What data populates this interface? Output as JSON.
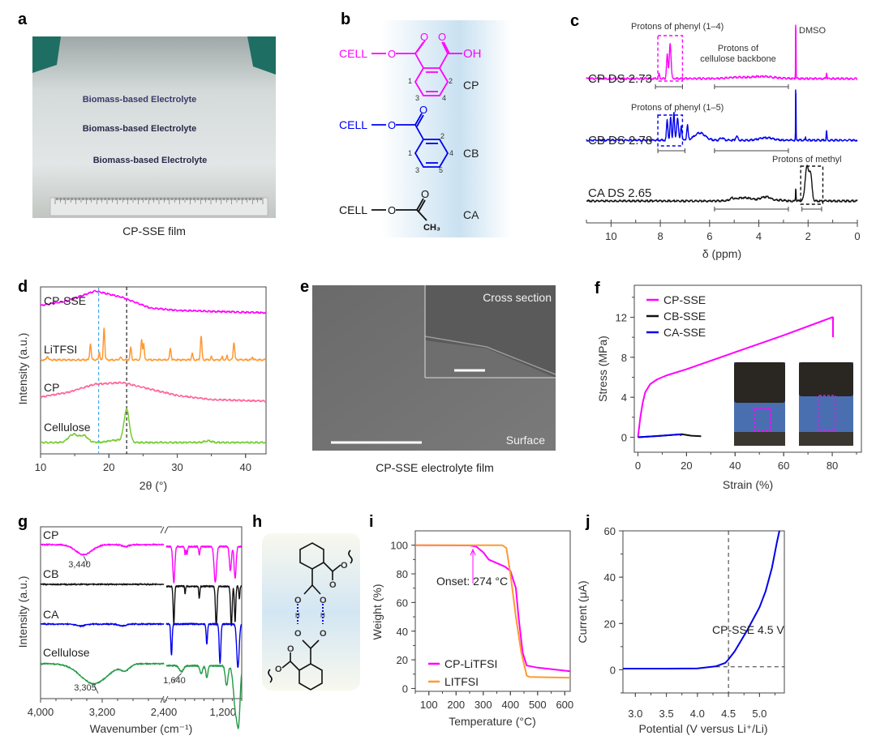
{
  "panels": {
    "a": {
      "label": "a",
      "caption": "CP-SSE film",
      "film_text": [
        "Biomass-based Electrolyte",
        "Biomass-based Electrolyte",
        "Biomass-based Electrolyte"
      ]
    },
    "b": {
      "label": "b",
      "cp": {
        "group": "CELL",
        "o": "O",
        "oh": "OH",
        "name": "CP",
        "positions": [
          "1",
          "2",
          "3",
          "4"
        ]
      },
      "cb": {
        "group": "CELL",
        "o": "O",
        "name": "CB",
        "positions": [
          "1",
          "2",
          "3",
          "4",
          "5"
        ]
      },
      "ca": {
        "group": "CELL",
        "o": "O",
        "methyl": "CH₃",
        "name": "CA"
      }
    },
    "e": {
      "label": "e",
      "caption": "CP-SSE electrolyte film",
      "inset_label": "Cross section",
      "main_label": "Surface"
    },
    "h": {
      "label": "h",
      "atoms": {
        "o": "O",
        "h": "H"
      }
    }
  },
  "colors": {
    "magenta": "#ff00ff",
    "blue": "#0000ee",
    "black": "#111111",
    "orange": "#ff9933",
    "pink": "#ff6699",
    "green": "#77cc33",
    "dkgreen": "#229944",
    "lightblue": "#4aa8ee"
  },
  "chart_data": [
    {
      "id": "c",
      "label": "c",
      "type": "line",
      "xlabel": "δ (ppm)",
      "xlim": [
        11,
        0
      ],
      "xticks": [
        10,
        8,
        6,
        4,
        2,
        0
      ],
      "series": [
        {
          "name": "CP DS 2.73",
          "color": "#ff00ff",
          "offset": 15.1,
          "peaks": [
            [
              7.6,
              4.4,
              0.05
            ],
            [
              7.72,
              3.0,
              0.04
            ],
            [
              8.05,
              0.6,
              0.03
            ],
            [
              3.8,
              0.25,
              0.6
            ],
            [
              4.8,
              0.15,
              0.6
            ],
            [
              2.5,
              8.2,
              0.012
            ],
            [
              1.25,
              0.8,
              0.02
            ]
          ]
        },
        {
          "name": "CB DS 2.78",
          "color": "#0000ee",
          "offset": 7.5,
          "peaks": [
            [
              7.72,
              2.5,
              0.04
            ],
            [
              7.58,
              2.8,
              0.04
            ],
            [
              7.45,
              3.4,
              0.04
            ],
            [
              7.3,
              2.8,
              0.05
            ],
            [
              7.15,
              1.8,
              0.04
            ],
            [
              6.9,
              1.8,
              0.04
            ],
            [
              6.4,
              0.9,
              0.3
            ],
            [
              5.5,
              0.3,
              0.1
            ],
            [
              4.9,
              0.5,
              0.06
            ],
            [
              3.7,
              0.3,
              0.4
            ],
            [
              2.5,
              7.6,
              0.012
            ],
            [
              2.1,
              0.3,
              0.02
            ],
            [
              1.25,
              1.2,
              0.02
            ]
          ]
        },
        {
          "name": "CA DS 2.65",
          "color": "#111111",
          "offset": 0,
          "peaks": [
            [
              5.1,
              0.25,
              0.1
            ],
            [
              4.6,
              0.4,
              0.5
            ],
            [
              3.7,
              0.5,
              0.3
            ],
            [
              3.1,
              0.1,
              0.2
            ],
            [
              2.5,
              1.8,
              0.015
            ],
            [
              2.05,
              4.2,
              0.1
            ],
            [
              1.9,
              3.2,
              0.08
            ]
          ]
        }
      ],
      "annotations": {
        "phenyl_cp": "Protons of phenyl (1–4)",
        "backbone": "Protons of cellulose backbone",
        "dmso": "DMSO",
        "phenyl_cb": "Protons of phenyl (1–5)",
        "methyl": "Protons of methyl"
      },
      "brackets": [
        [
          0,
          8.2,
          7.1
        ],
        [
          0,
          5.8,
          2.8
        ],
        [
          1,
          8.1,
          7.0
        ],
        [
          1,
          5.8,
          2.8
        ],
        [
          2,
          5.8,
          2.8
        ],
        [
          2,
          2.25,
          1.45
        ]
      ],
      "boxes": [
        [
          0,
          8.1,
          7.1,
          "#ff00ff"
        ],
        [
          1,
          8.1,
          7.1,
          "#0000ee"
        ],
        [
          2,
          2.3,
          1.4,
          "#111111"
        ]
      ]
    },
    {
      "id": "d",
      "label": "d",
      "type": "line",
      "xlabel": "2θ (°)",
      "ylabel": "Intensity (a.u.)",
      "xlim": [
        10,
        43
      ],
      "xticks": [
        10,
        20,
        30,
        40
      ],
      "vlines": [
        {
          "x": 18.5,
          "color": "#4aa8ee"
        },
        {
          "x": 22.6,
          "color": "#222222"
        }
      ],
      "series": [
        {
          "name": "CP-SSE",
          "color": "#ff00ff",
          "offset": 16.3,
          "base": [
            [
              10,
              0.6
            ],
            [
              14,
              1.2
            ],
            [
              18,
              2.4
            ],
            [
              22,
              1.6
            ],
            [
              26,
              0.3
            ],
            [
              30,
              0
            ],
            [
              43,
              -0.3
            ]
          ],
          "peaks": []
        },
        {
          "name": "LiTFSI",
          "color": "#ff9933",
          "offset": 10.2,
          "base": [
            [
              10,
              0
            ],
            [
              43,
              0
            ]
          ],
          "peaks": [
            [
              11,
              0.5,
              0.15
            ],
            [
              17.3,
              2.0,
              0.15
            ],
            [
              18.6,
              1.0,
              0.12
            ],
            [
              19.3,
              4.0,
              0.15
            ],
            [
              21.7,
              0.3,
              0.2
            ],
            [
              23.2,
              1.5,
              0.15
            ],
            [
              24.8,
              2.5,
              0.15
            ],
            [
              25.1,
              2.0,
              0.12
            ],
            [
              29,
              1.5,
              0.15
            ],
            [
              32.2,
              0.8,
              0.15
            ],
            [
              33.5,
              3.0,
              0.15
            ],
            [
              35,
              0.4,
              0.12
            ],
            [
              36.6,
              0.4,
              0.12
            ],
            [
              37.3,
              0.5,
              0.12
            ],
            [
              38.3,
              2.2,
              0.15
            ],
            [
              41,
              0.4,
              0.12
            ]
          ]
        },
        {
          "name": "CP",
          "color": "#ff6699",
          "offset": 5.6,
          "base": [
            [
              10,
              0
            ],
            [
              14,
              0.6
            ],
            [
              18,
              1.6
            ],
            [
              22,
              1.8
            ],
            [
              26,
              1.0
            ],
            [
              30,
              0.2
            ],
            [
              35,
              -0.3
            ],
            [
              43,
              -0.5
            ]
          ],
          "peaks": []
        },
        {
          "name": "Cellulose",
          "color": "#77cc33",
          "offset": 0,
          "base": [
            [
              10,
              0
            ],
            [
              43,
              0
            ]
          ],
          "peaks": [
            [
              14.8,
              1.0,
              1.0
            ],
            [
              16.4,
              0.8,
              0.8
            ],
            [
              21,
              0.3,
              1.5
            ],
            [
              22.6,
              4.0,
              0.55
            ],
            [
              34.5,
              0.2,
              0.8
            ]
          ]
        }
      ]
    },
    {
      "id": "f",
      "label": "f",
      "type": "line",
      "xlabel": "Strain (%)",
      "ylabel": "Stress (MPa)",
      "xlim": [
        -1.5,
        92
      ],
      "ylim": [
        -1.5,
        15.2
      ],
      "xticks": [
        0,
        20,
        40,
        60,
        80
      ],
      "yticks": [
        0,
        4,
        8,
        12
      ],
      "legend": "top-left",
      "series": [
        {
          "name": "CP-SSE",
          "color": "#ff00ff",
          "points": [
            [
              0,
              0
            ],
            [
              1,
              2
            ],
            [
              2,
              3.5
            ],
            [
              3,
              4.5
            ],
            [
              5,
              5.3
            ],
            [
              8,
              5.8
            ],
            [
              12,
              6.2
            ],
            [
              20,
              6.8
            ],
            [
              40,
              8.5
            ],
            [
              60,
              10.2
            ],
            [
              80,
              12
            ],
            [
              80.3,
              12
            ],
            [
              80.3,
              10
            ]
          ]
        },
        {
          "name": "CB-SSE",
          "color": "#111111",
          "points": [
            [
              0,
              0
            ],
            [
              10,
              0.15
            ],
            [
              18,
              0.3
            ],
            [
              22,
              0.15
            ],
            [
              26,
              0.1
            ]
          ]
        },
        {
          "name": "CA-SSE",
          "color": "#0000ee",
          "points": [
            [
              0,
              0
            ],
            [
              8,
              0.12
            ],
            [
              17,
              0.28
            ],
            [
              18,
              0.2
            ]
          ]
        }
      ]
    },
    {
      "id": "g",
      "label": "g",
      "type": "line",
      "xlabel": "Wavenumber (cm⁻¹)",
      "ylabel": "Intensity (a.u.)",
      "xlim_left": [
        4000,
        2400
      ],
      "xlim_right": [
        1800,
        1000
      ],
      "xticks": [
        "4,000",
        "3,200",
        "2,400",
        "1,200"
      ],
      "annotations": [
        {
          "series": 0,
          "text": "3,440"
        },
        {
          "series": 3,
          "text": "3,305"
        },
        {
          "series": 3,
          "text": "1,640"
        }
      ],
      "series": [
        {
          "name": "CP",
          "color": "#ff00ff",
          "offset": 3.0,
          "dips": [
            [
              3440,
              0.25,
              150
            ],
            [
              2900,
              0.05,
              60
            ],
            [
              1720,
              0.9,
              15
            ],
            [
              1600,
              0.2,
              8
            ],
            [
              1580,
              0.2,
              8
            ],
            [
              1450,
              0.2,
              10
            ],
            [
              1280,
              0.9,
              18
            ],
            [
              1120,
              0.6,
              15
            ],
            [
              1070,
              0.8,
              15
            ]
          ]
        },
        {
          "name": "CB",
          "color": "#111111",
          "offset": 2.0,
          "dips": [
            [
              1720,
              0.95,
              10
            ],
            [
              1600,
              0.2,
              6
            ],
            [
              1450,
              0.3,
              8
            ],
            [
              1270,
              1.0,
              12
            ],
            [
              1110,
              1.0,
              12
            ],
            [
              1070,
              0.9,
              10
            ],
            [
              1025,
              0.3,
              8
            ]
          ]
        },
        {
          "name": "CA",
          "color": "#0000ee",
          "offset": 1.0,
          "dips": [
            [
              3480,
              0.05,
              80
            ],
            [
              2940,
              0.05,
              60
            ],
            [
              1745,
              0.8,
              10
            ],
            [
              1370,
              0.5,
              10
            ],
            [
              1230,
              1.0,
              12
            ],
            [
              1040,
              1.1,
              18
            ]
          ]
        },
        {
          "name": "Cellulose",
          "color": "#229944",
          "offset": 0,
          "dips": [
            [
              3305,
              0.5,
              250
            ],
            [
              2900,
              0.15,
              80
            ],
            [
              1640,
              0.15,
              30
            ],
            [
              1430,
              0.2,
              20
            ],
            [
              1370,
              0.3,
              15
            ],
            [
              1160,
              0.5,
              20
            ],
            [
              1060,
              1.2,
              35
            ],
            [
              1030,
              0.9,
              20
            ]
          ]
        }
      ]
    },
    {
      "id": "i",
      "label": "i",
      "type": "line",
      "xlabel": "Temperature (°C)",
      "ylabel": "Weight (%)",
      "xlim": [
        50,
        620
      ],
      "ylim": [
        -2,
        110
      ],
      "xticks": [
        100,
        200,
        300,
        400,
        500,
        600
      ],
      "yticks": [
        0,
        20,
        40,
        60,
        80,
        100
      ],
      "legend": "bottom-left",
      "annotation": {
        "text": "Onset: 274 °C",
        "x": 274
      },
      "series": [
        {
          "name": "CP-LiTFSI",
          "color": "#ff00ff",
          "points": [
            [
              50,
              100
            ],
            [
              250,
              99.8
            ],
            [
              274,
              99
            ],
            [
              300,
              95
            ],
            [
              320,
              90
            ],
            [
              380,
              85
            ],
            [
              400,
              82
            ],
            [
              420,
              70
            ],
            [
              430,
              50
            ],
            [
              445,
              25
            ],
            [
              460,
              16
            ],
            [
              500,
              14.5
            ],
            [
              620,
              12
            ]
          ]
        },
        {
          "name": "LITFSI",
          "color": "#ff9933",
          "points": [
            [
              50,
              100
            ],
            [
              370,
              100
            ],
            [
              385,
              98
            ],
            [
              400,
              80
            ],
            [
              420,
              50
            ],
            [
              440,
              25
            ],
            [
              460,
              9
            ],
            [
              470,
              8
            ],
            [
              620,
              7.5
            ]
          ]
        }
      ]
    },
    {
      "id": "j",
      "label": "j",
      "type": "line",
      "xlabel": "Potential (V versus Li⁺/Li)",
      "ylabel": "Current (μA)",
      "xlim": [
        2.8,
        5.4
      ],
      "ylim": [
        -10,
        60
      ],
      "xticks": [
        3.0,
        3.5,
        4.0,
        4.5,
        5.0
      ],
      "yticks": [
        0,
        20,
        40,
        60
      ],
      "annotation": {
        "text": "CP-SSE 4.5 V",
        "x": 4.5,
        "y": 1.3
      },
      "series": [
        {
          "name": "CP-SSE",
          "color": "#0000ee",
          "points": [
            [
              2.8,
              0.5
            ],
            [
              3.5,
              0.5
            ],
            [
              4.0,
              0.6
            ],
            [
              4.3,
              1.5
            ],
            [
              4.45,
              3
            ],
            [
              4.5,
              4.5
            ],
            [
              4.6,
              8
            ],
            [
              4.8,
              17
            ],
            [
              5.0,
              27
            ],
            [
              5.1,
              34
            ],
            [
              5.2,
              44
            ],
            [
              5.28,
              55
            ],
            [
              5.32,
              60
            ]
          ]
        }
      ]
    }
  ]
}
